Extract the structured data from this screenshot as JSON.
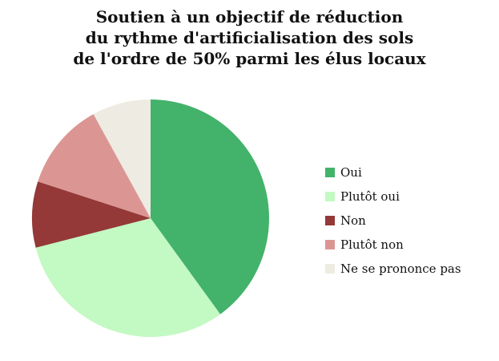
{
  "chart_data": {
    "type": "pie",
    "title_lines": [
      "Soutien à un objectif de réduction",
      "du rythme d'artificialisation des sols",
      "de l'ordre de 50% parmi les élus locaux"
    ],
    "legend_placement": "right",
    "slices": [
      {
        "label": "Oui",
        "value": 40,
        "color": "#43b26b"
      },
      {
        "label": "Plutôt oui",
        "value": 31,
        "color": "#c3f9c3"
      },
      {
        "label": "Non",
        "value": 9,
        "color": "#943838"
      },
      {
        "label": "Plutôt non",
        "value": 12,
        "color": "#db9694"
      },
      {
        "label": "Ne se prononce pas",
        "value": 8,
        "color": "#eeebe2"
      }
    ]
  }
}
